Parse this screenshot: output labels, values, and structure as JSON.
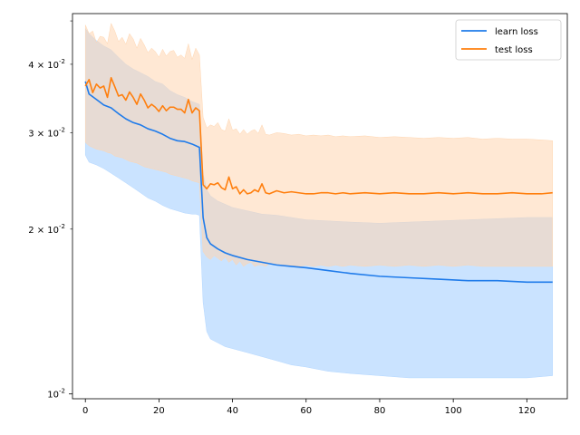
{
  "chart_data": {
    "type": "line",
    "yscale": "log",
    "xlim": [
      -3.5,
      131
    ],
    "ylim": [
      0.0098,
      0.0495
    ],
    "grid": false,
    "legend_placement": "top-right",
    "xticks": [
      0,
      20,
      40,
      60,
      80,
      100,
      120
    ],
    "xtick_labels": [
      "0",
      "20",
      "40",
      "60",
      "80",
      "100",
      "120"
    ],
    "yticks_major": [
      0.01
    ],
    "ytick_major_labels": [
      "10^{-2}"
    ],
    "yticks_minor": [
      0.02,
      0.03,
      0.04
    ],
    "ytick_minor_labels": [
      "2 × 10^{-2}",
      "3 × 10^{-2}",
      "4 × 10^{-2}"
    ],
    "colors": {
      "learn": "#1f7bea",
      "test": "#ff7f0e",
      "learn_band": "#b3d7ff",
      "test_band": "#ffd6b0"
    },
    "series": [
      {
        "name": "learn loss",
        "x": [
          0,
          1,
          3,
          5,
          7,
          9,
          11,
          13,
          15,
          17,
          19,
          21,
          23,
          25,
          27,
          29,
          30,
          31,
          32,
          33,
          34,
          36,
          38,
          40,
          44,
          48,
          52,
          56,
          60,
          66,
          72,
          80,
          88,
          96,
          104,
          112,
          120,
          127
        ],
        "values": [
          0.0372,
          0.0353,
          0.0345,
          0.0337,
          0.0333,
          0.0325,
          0.0318,
          0.0313,
          0.031,
          0.0305,
          0.0302,
          0.0298,
          0.0293,
          0.029,
          0.0289,
          0.0286,
          0.0284,
          0.0282,
          0.021,
          0.0193,
          0.0188,
          0.0184,
          0.0181,
          0.0179,
          0.0176,
          0.0174,
          0.0172,
          0.0171,
          0.017,
          0.0168,
          0.0166,
          0.0164,
          0.0163,
          0.0162,
          0.0161,
          0.0161,
          0.016,
          0.016
        ],
        "band_low": [
          0.0273,
          0.0265,
          0.0262,
          0.0258,
          0.0253,
          0.0248,
          0.0243,
          0.0238,
          0.0233,
          0.0228,
          0.0225,
          0.0221,
          0.0218,
          0.0216,
          0.0214,
          0.0213,
          0.0213,
          0.0212,
          0.0147,
          0.013,
          0.0126,
          0.0124,
          0.0122,
          0.0121,
          0.0119,
          0.0117,
          0.0115,
          0.0113,
          0.0112,
          0.011,
          0.0109,
          0.0108,
          0.0107,
          0.0107,
          0.0107,
          0.0107,
          0.0107,
          0.0108
        ],
        "band_high": [
          0.0465,
          0.0455,
          0.0442,
          0.0432,
          0.0425,
          0.0412,
          0.04,
          0.0392,
          0.0386,
          0.038,
          0.0372,
          0.0368,
          0.0358,
          0.0352,
          0.0348,
          0.0342,
          0.034,
          0.0338,
          0.0252,
          0.0236,
          0.023,
          0.0225,
          0.0222,
          0.0219,
          0.0216,
          0.0213,
          0.0212,
          0.021,
          0.0208,
          0.0207,
          0.0206,
          0.0205,
          0.0206,
          0.0207,
          0.0208,
          0.0209,
          0.021,
          0.021
        ]
      },
      {
        "name": "test loss",
        "x": [
          0,
          1,
          2,
          3,
          4,
          5,
          6,
          7,
          8,
          9,
          10,
          11,
          12,
          13,
          14,
          15,
          16,
          17,
          18,
          19,
          20,
          21,
          22,
          23,
          24,
          25,
          26,
          27,
          28,
          29,
          30,
          31,
          32,
          33,
          34,
          35,
          36,
          37,
          38,
          39,
          40,
          41,
          42,
          43,
          44,
          45,
          46,
          47,
          48,
          49,
          50,
          52,
          54,
          56,
          58,
          60,
          62,
          64,
          66,
          68,
          70,
          72,
          76,
          80,
          84,
          88,
          92,
          96,
          100,
          104,
          108,
          112,
          116,
          120,
          124,
          127
        ],
        "values": [
          0.0365,
          0.0375,
          0.0355,
          0.0368,
          0.0362,
          0.0365,
          0.0348,
          0.0378,
          0.0364,
          0.035,
          0.0352,
          0.0344,
          0.0356,
          0.0348,
          0.0338,
          0.0353,
          0.0344,
          0.0333,
          0.0338,
          0.0334,
          0.0328,
          0.0336,
          0.0329,
          0.0334,
          0.0334,
          0.0331,
          0.0331,
          0.0326,
          0.0345,
          0.0326,
          0.0333,
          0.0329,
          0.0241,
          0.0237,
          0.0242,
          0.0241,
          0.0243,
          0.0238,
          0.0236,
          0.0249,
          0.0237,
          0.0239,
          0.0232,
          0.0236,
          0.0232,
          0.0233,
          0.0236,
          0.0234,
          0.0242,
          0.0233,
          0.0232,
          0.0235,
          0.0233,
          0.0234,
          0.0233,
          0.0232,
          0.0232,
          0.0233,
          0.0233,
          0.0232,
          0.0233,
          0.0232,
          0.0233,
          0.0232,
          0.0233,
          0.0232,
          0.0232,
          0.0233,
          0.0232,
          0.0233,
          0.0232,
          0.0232,
          0.0233,
          0.0232,
          0.0232,
          0.0233
        ],
        "band_low": [
          0.0288,
          0.0284,
          0.0282,
          0.028,
          0.0279,
          0.0278,
          0.0276,
          0.0275,
          0.0272,
          0.0271,
          0.027,
          0.0268,
          0.0266,
          0.0265,
          0.0264,
          0.0262,
          0.026,
          0.0259,
          0.0258,
          0.0257,
          0.0256,
          0.0255,
          0.0254,
          0.0252,
          0.0251,
          0.025,
          0.0249,
          0.0248,
          0.0247,
          0.0245,
          0.0244,
          0.0243,
          0.0182,
          0.0178,
          0.0176,
          0.0179,
          0.0177,
          0.0175,
          0.0178,
          0.0174,
          0.0176,
          0.0172,
          0.0175,
          0.0171,
          0.0173,
          0.0174,
          0.0171,
          0.0172,
          0.0172,
          0.0171,
          0.0173,
          0.0172,
          0.0171,
          0.0172,
          0.0171,
          0.0172,
          0.0171,
          0.0172,
          0.0171,
          0.0172,
          0.0171,
          0.0172,
          0.0171,
          0.0172,
          0.0171,
          0.0172,
          0.0171,
          0.0172,
          0.0171,
          0.0172,
          0.0171,
          0.0171,
          0.0171,
          0.0171,
          0.0171,
          0.0171
        ],
        "band_high": [
          0.0472,
          0.0455,
          0.046,
          0.0438,
          0.045,
          0.0448,
          0.0436,
          0.0475,
          0.046,
          0.044,
          0.0448,
          0.0435,
          0.0455,
          0.0445,
          0.0428,
          0.0446,
          0.0434,
          0.042,
          0.0428,
          0.0422,
          0.0412,
          0.0426,
          0.0414,
          0.0422,
          0.0424,
          0.0412,
          0.0416,
          0.041,
          0.0436,
          0.0408,
          0.0428,
          0.0416,
          0.032,
          0.0306,
          0.031,
          0.0308,
          0.0313,
          0.0304,
          0.0302,
          0.0318,
          0.0303,
          0.0305,
          0.0298,
          0.0304,
          0.0298,
          0.0302,
          0.0304,
          0.0299,
          0.031,
          0.0298,
          0.0297,
          0.03,
          0.0299,
          0.0297,
          0.0298,
          0.0296,
          0.0297,
          0.0296,
          0.0297,
          0.0295,
          0.0296,
          0.0295,
          0.0296,
          0.0294,
          0.0295,
          0.0294,
          0.0293,
          0.0294,
          0.0293,
          0.0294,
          0.0292,
          0.0293,
          0.0292,
          0.0292,
          0.0291,
          0.029
        ]
      }
    ]
  }
}
